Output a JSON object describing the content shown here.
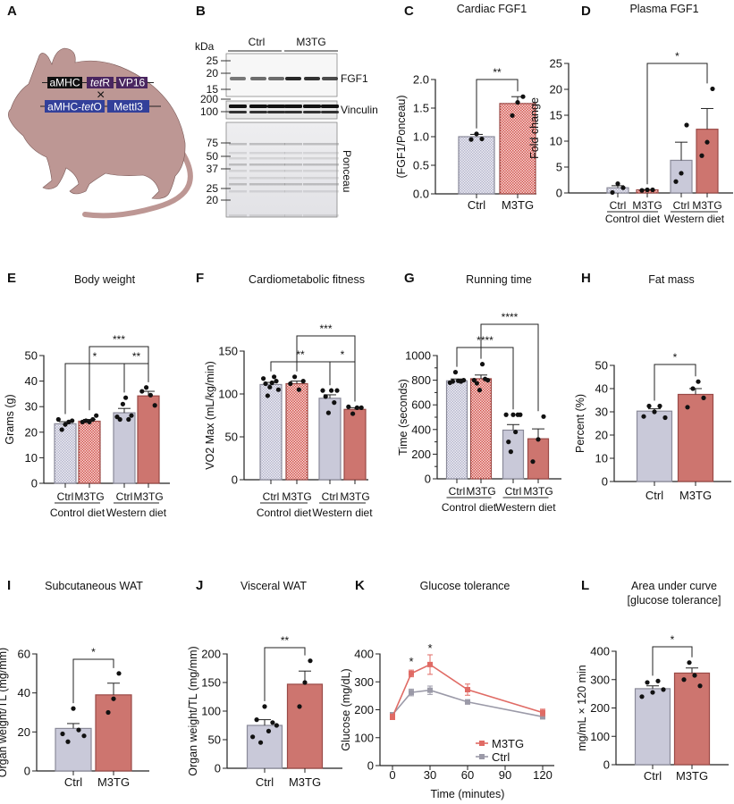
{
  "panel_letters": [
    "A",
    "B",
    "C",
    "D",
    "E",
    "F",
    "G",
    "H",
    "I",
    "J",
    "K",
    "L"
  ],
  "panel_a": {
    "constructs": [
      {
        "label_parts": [
          "aMHC"
        ],
        "color": "#111111"
      },
      {
        "label_parts": [
          "tet",
          "R"
        ],
        "color": "#4a2660"
      },
      {
        "label_parts": [
          "VP16"
        ],
        "color": "#4a2660"
      },
      {
        "label_parts": [
          "aMHC-",
          "tet",
          "O"
        ],
        "color": "#33409a"
      },
      {
        "label_parts": [
          "Mettl3"
        ],
        "color": "#33409a"
      }
    ],
    "cross_symbol": "×",
    "mouse_color": "#bd9794"
  },
  "panel_b": {
    "kda_label": "kDa",
    "lane_groups": [
      "Ctrl",
      "M3TG"
    ],
    "blots": [
      {
        "label": "FGF1",
        "markers": [
          "25",
          "20",
          "15"
        ]
      },
      {
        "label": "Vinculin",
        "markers": [
          "200",
          "100"
        ]
      },
      {
        "label": "Ponceau",
        "markers": [
          "75",
          "50",
          "37",
          "25",
          "20"
        ]
      }
    ]
  },
  "colors": {
    "ctrl_fill": "#c9c9d9",
    "ctrl_edge": "#8a8a99",
    "m3tg_fill": "#cd756f",
    "m3tg_edge": "#9a4a47",
    "ctrl_line": "#9b9aa8",
    "m3tg_line": "#e06b65"
  },
  "chart_data": [
    {
      "id": "C",
      "type": "bar",
      "title": "Cardiac FGF1",
      "ylabel": "(FGF1/Ponceau)",
      "ylim": [
        0,
        2
      ],
      "yticks": [
        "0.0",
        "0.5",
        "1.0",
        "1.5",
        "2.0"
      ],
      "categories": [
        "Ctrl",
        "M3TG"
      ],
      "groups": [],
      "bars": [
        {
          "mean": 1.0,
          "sem": 0.04,
          "points": [
            0.95,
            1.05,
            0.96
          ],
          "color": "ctrl",
          "patterned": true
        },
        {
          "mean": 1.58,
          "sem": 0.12,
          "points": [
            1.37,
            1.6,
            1.7
          ],
          "color": "m3tg",
          "patterned": true
        }
      ],
      "significance": [
        {
          "from": 0,
          "to": 1,
          "label": "**"
        }
      ]
    },
    {
      "id": "D",
      "type": "bar",
      "title": "Plasma FGF1",
      "ylabel": "Fold change",
      "ylim": [
        0,
        25
      ],
      "yticks": [
        "0",
        "5",
        "10",
        "15",
        "20",
        "25"
      ],
      "categories": [
        "Ctrl",
        "M3TG",
        "Ctrl",
        "M3TG"
      ],
      "groups": [
        "Control diet",
        "Western diet"
      ],
      "bars": [
        {
          "mean": 1.0,
          "sem": 0.4,
          "points": [
            0.1,
            1.8,
            1.0
          ],
          "color": "ctrl",
          "patterned": true
        },
        {
          "mean": 0.6,
          "sem": 0.05,
          "points": [
            0.5,
            0.6,
            0.6
          ],
          "color": "m3tg",
          "patterned": true
        },
        {
          "mean": 6.3,
          "sem": 3.5,
          "points": [
            2.2,
            3.8,
            13.1
          ],
          "color": "ctrl",
          "patterned": false
        },
        {
          "mean": 12.3,
          "sem": 4.0,
          "points": [
            7.2,
            9.8,
            20.1
          ],
          "color": "m3tg",
          "patterned": false
        }
      ],
      "significance": [
        {
          "from": 1,
          "to": 3,
          "label": "*"
        }
      ]
    },
    {
      "id": "E",
      "type": "bar",
      "title": "Body weight",
      "ylabel": "Grams (g)",
      "ylim": [
        0,
        50
      ],
      "yticks": [
        "0",
        "10",
        "20",
        "30",
        "40",
        "50"
      ],
      "categories": [
        "Ctrl",
        "M3TG",
        "Ctrl",
        "M3TG"
      ],
      "groups": [
        "Control diet",
        "Western diet"
      ],
      "bars": [
        {
          "mean": 23.3,
          "sem": 0.8,
          "points": [
            25,
            21,
            23,
            24,
            24.5
          ],
          "color": "ctrl",
          "patterned": true
        },
        {
          "mean": 24.3,
          "sem": 0.7,
          "points": [
            24,
            24.5,
            24,
            25,
            26.5
          ],
          "color": "m3tg",
          "patterned": true
        },
        {
          "mean": 27.6,
          "sem": 1.7,
          "points": [
            26,
            25,
            31,
            33.5,
            25,
            26.5
          ],
          "color": "ctrl",
          "patterned": false
        },
        {
          "mean": 34.2,
          "sem": 1.8,
          "points": [
            36,
            37.5,
            34.5,
            30.5
          ],
          "color": "m3tg",
          "patterned": false
        }
      ],
      "significance": [
        {
          "from": 0,
          "to": 2,
          "label": "*"
        },
        {
          "from": 2,
          "to": 3,
          "label": "**"
        },
        {
          "from": 1,
          "to": 3,
          "label": "***"
        }
      ]
    },
    {
      "id": "F",
      "type": "bar",
      "title": "Cardiometabolic fitness",
      "ylabel": "VO2 Max (mL/kg/min)",
      "ylim": [
        0,
        150
      ],
      "yticks": [
        "0",
        "50",
        "100",
        "150"
      ],
      "categories": [
        "Ctrl",
        "M3TG",
        "Ctrl",
        "M3TG"
      ],
      "groups": [
        "Control diet",
        "Western diet"
      ],
      "bars": [
        {
          "mean": 111,
          "sem": 2.5,
          "points": [
            118,
            112,
            98,
            108,
            113,
            120,
            115,
            105
          ],
          "color": "ctrl",
          "patterned": true
        },
        {
          "mean": 112,
          "sem": 3,
          "points": [
            112,
            120,
            105,
            115
          ],
          "color": "m3tg",
          "patterned": true
        },
        {
          "mean": 95,
          "sem": 4,
          "points": [
            104,
            97,
            78,
            104,
            90,
            104
          ],
          "color": "ctrl",
          "patterned": false
        },
        {
          "mean": 82,
          "sem": 2,
          "points": [
            85,
            77,
            84,
            84
          ],
          "color": "m3tg",
          "patterned": false
        }
      ],
      "significance": [
        {
          "from": 0,
          "to": 2,
          "label": "**"
        },
        {
          "from": 2,
          "to": 3,
          "label": "*"
        },
        {
          "from": 1,
          "to": 3,
          "label": "***"
        }
      ]
    },
    {
      "id": "G",
      "type": "bar",
      "title": "Running time",
      "ylabel": "Time (seconds)",
      "ylim": [
        0,
        1000
      ],
      "yticks": [
        "0",
        "200",
        "400",
        "600",
        "800",
        "1000"
      ],
      "categories": [
        "Ctrl",
        "M3TG",
        "Ctrl",
        "M3TG"
      ],
      "groups": [
        "Control diet",
        "Western diet"
      ],
      "bars": [
        {
          "mean": 795,
          "sem": 15,
          "points": [
            780,
            790,
            865,
            795,
            790,
            800
          ],
          "color": "ctrl",
          "patterned": true
        },
        {
          "mean": 812,
          "sem": 30,
          "points": [
            800,
            775,
            720,
            930,
            810,
            800
          ],
          "color": "m3tg",
          "patterned": true
        },
        {
          "mean": 395,
          "sem": 45,
          "points": [
            520,
            300,
            220,
            520,
            380,
            520,
            520
          ],
          "color": "ctrl",
          "patterned": false
        },
        {
          "mean": 325,
          "sem": 80,
          "points": [
            140,
            320,
            505
          ],
          "color": "m3tg",
          "patterned": false
        }
      ],
      "significance": [
        {
          "from": 0,
          "to": 2,
          "label": "****"
        },
        {
          "from": 1,
          "to": 3,
          "label": "****"
        }
      ]
    },
    {
      "id": "H",
      "type": "bar",
      "title": "Fat mass",
      "ylabel": "Percent (%)",
      "ylim": [
        0,
        50
      ],
      "yticks": [
        "0",
        "10",
        "20",
        "30",
        "40",
        "50"
      ],
      "categories": [
        "Ctrl",
        "M3TG"
      ],
      "groups": [],
      "bars": [
        {
          "mean": 30.3,
          "sem": 1,
          "points": [
            28,
            32.5,
            30,
            32.5,
            27.5
          ],
          "color": "ctrl",
          "patterned": false
        },
        {
          "mean": 37.5,
          "sem": 2.5,
          "points": [
            32,
            40,
            43,
            36
          ],
          "color": "m3tg",
          "patterned": false
        }
      ],
      "significance": [
        {
          "from": 0,
          "to": 1,
          "label": "*"
        }
      ]
    },
    {
      "id": "I",
      "type": "bar",
      "title": "Subcutaneous WAT",
      "ylabel": "Organ weight/TL (mg/mm)",
      "ylim": [
        0,
        60
      ],
      "yticks": [
        "0",
        "20",
        "40",
        "60"
      ],
      "categories": [
        "Ctrl",
        "M3TG"
      ],
      "groups": [],
      "bars": [
        {
          "mean": 21.8,
          "sem": 2.5,
          "points": [
            19,
            15,
            32,
            21,
            18
          ],
          "color": "ctrl",
          "patterned": false
        },
        {
          "mean": 39,
          "sem": 6,
          "points": [
            30,
            37,
            50
          ],
          "color": "m3tg",
          "patterned": false
        }
      ],
      "significance": [
        {
          "from": 0,
          "to": 1,
          "label": "*"
        }
      ]
    },
    {
      "id": "J",
      "type": "bar",
      "title": "Visceral WAT",
      "ylabel": "Organ weight/TL (mg/mm)",
      "ylim": [
        0,
        200
      ],
      "yticks": [
        "0",
        "50",
        "100",
        "150",
        "200"
      ],
      "categories": [
        "Ctrl",
        "M3TG"
      ],
      "groups": [],
      "bars": [
        {
          "mean": 75,
          "sem": 10,
          "points": [
            55,
            85,
            45,
            108,
            65,
            80,
            75
          ],
          "color": "ctrl",
          "patterned": false
        },
        {
          "mean": 147,
          "sem": 23,
          "points": [
            108,
            150,
            188
          ],
          "color": "m3tg",
          "patterned": false
        }
      ],
      "significance": [
        {
          "from": 0,
          "to": 1,
          "label": "**"
        }
      ]
    },
    {
      "id": "K",
      "type": "line",
      "title": "Glucose tolerance",
      "xlabel": "Time (minutes)",
      "ylabel": "Glucose (mg/dL)",
      "xlim": [
        0,
        120
      ],
      "ylim": [
        0,
        400
      ],
      "xticks": [
        "0",
        "30",
        "60",
        "90",
        "120"
      ],
      "yticks": [
        "0",
        "100",
        "200",
        "300",
        "400"
      ],
      "x": [
        0,
        15,
        30,
        60,
        120
      ],
      "series": [
        {
          "name": "M3TG",
          "values": [
            175,
            330,
            362,
            272,
            190
          ],
          "sem": [
            10,
            12,
            35,
            20,
            12
          ],
          "color": "m3tg"
        },
        {
          "name": "Ctrl",
          "values": [
            182,
            262,
            270,
            228,
            175
          ],
          "sem": [
            8,
            12,
            15,
            8,
            8
          ],
          "color": "ctrl"
        }
      ],
      "annotations": [
        {
          "x": 15,
          "label": "*"
        },
        {
          "x": 30,
          "label": "*"
        }
      ],
      "legend": "bottom-right"
    },
    {
      "id": "L",
      "type": "bar",
      "title": "Area under curve",
      "subtitle": "[glucose tolerance]",
      "ylabel": "mg/mL × 120 min",
      "ylim": [
        0,
        400
      ],
      "yticks": [
        "0",
        "100",
        "200",
        "300",
        "400"
      ],
      "categories": [
        "Ctrl",
        "M3TG"
      ],
      "groups": [],
      "bars": [
        {
          "mean": 268,
          "sem": 10,
          "points": [
            240,
            290,
            255,
            295,
            265
          ],
          "color": "ctrl",
          "patterned": false
        },
        {
          "mean": 323,
          "sem": 18,
          "points": [
            300,
            360,
            315,
            278
          ],
          "color": "m3tg",
          "patterned": false
        }
      ],
      "significance": [
        {
          "from": 0,
          "to": 1,
          "label": "*"
        }
      ]
    }
  ]
}
